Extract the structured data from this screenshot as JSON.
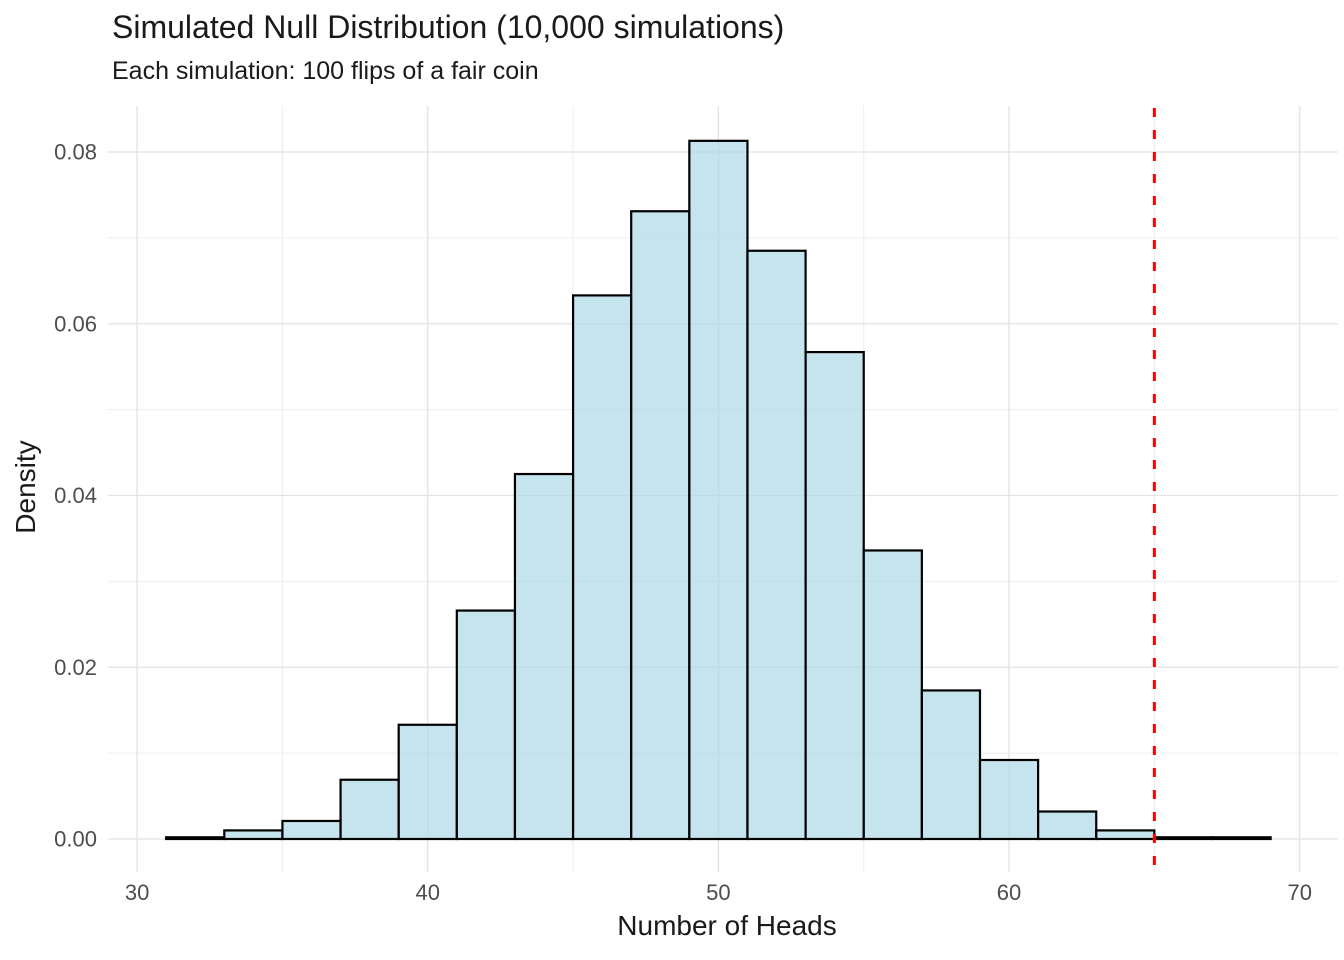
{
  "chart_data": {
    "type": "bar",
    "chart_kind": "histogram",
    "title": "Simulated Null Distribution (10,000 simulations)",
    "subtitle": "Each simulation: 100 flips of a fair coin",
    "xlabel": "Number of Heads",
    "ylabel": "Density",
    "xlim": [
      29,
      71.3
    ],
    "ylim": [
      0,
      0.0854
    ],
    "grid": "on",
    "legend": "none",
    "x_major_ticks": [
      {
        "value": 30,
        "label": "30"
      },
      {
        "value": 40,
        "label": "40"
      },
      {
        "value": 50,
        "label": "50"
      },
      {
        "value": 60,
        "label": "60"
      },
      {
        "value": 70,
        "label": "70"
      }
    ],
    "x_minor_gridlines": [
      35,
      45,
      55,
      65
    ],
    "y_major_ticks": [
      {
        "value": 0.0,
        "label": "0.00"
      },
      {
        "value": 0.02,
        "label": "0.02"
      },
      {
        "value": 0.04,
        "label": "0.04"
      },
      {
        "value": 0.06,
        "label": "0.06"
      },
      {
        "value": 0.08,
        "label": "0.08"
      }
    ],
    "y_minor_gridlines": [
      0.01,
      0.03,
      0.05,
      0.07
    ],
    "bin_width": 2,
    "bars": [
      {
        "x0": 31,
        "x1": 33,
        "density": 0.0002
      },
      {
        "x0": 33,
        "x1": 35,
        "density": 0.001
      },
      {
        "x0": 35,
        "x1": 37,
        "density": 0.0021
      },
      {
        "x0": 37,
        "x1": 39,
        "density": 0.0069
      },
      {
        "x0": 39,
        "x1": 41,
        "density": 0.0133
      },
      {
        "x0": 41,
        "x1": 43,
        "density": 0.0266
      },
      {
        "x0": 43,
        "x1": 45,
        "density": 0.0425
      },
      {
        "x0": 45,
        "x1": 47,
        "density": 0.0633
      },
      {
        "x0": 47,
        "x1": 49,
        "density": 0.0731
      },
      {
        "x0": 49,
        "x1": 51,
        "density": 0.0813
      },
      {
        "x0": 51,
        "x1": 53,
        "density": 0.0685
      },
      {
        "x0": 53,
        "x1": 55,
        "density": 0.0567
      },
      {
        "x0": 55,
        "x1": 57,
        "density": 0.0336
      },
      {
        "x0": 57,
        "x1": 59,
        "density": 0.0173
      },
      {
        "x0": 59,
        "x1": 61,
        "density": 0.0092
      },
      {
        "x0": 61,
        "x1": 63,
        "density": 0.0032
      },
      {
        "x0": 63,
        "x1": 65,
        "density": 0.001
      },
      {
        "x0": 65,
        "x1": 67,
        "density": 0.0002
      },
      {
        "x0": 67,
        "x1": 69,
        "density": 0.0002
      }
    ],
    "observed_line": {
      "x": 65,
      "color": "#FF0000",
      "linetype": "dashed"
    },
    "colors": {
      "bar_fill": "#ADD8E6",
      "bar_fill_alpha": 0.7,
      "bar_stroke": "#000000",
      "grid_major": "#E2E2E2",
      "grid_minor": "#EDEDED",
      "background": "#FFFFFF",
      "tick_text": "#4D4D4D",
      "title_text": "#1A1A1A"
    }
  }
}
